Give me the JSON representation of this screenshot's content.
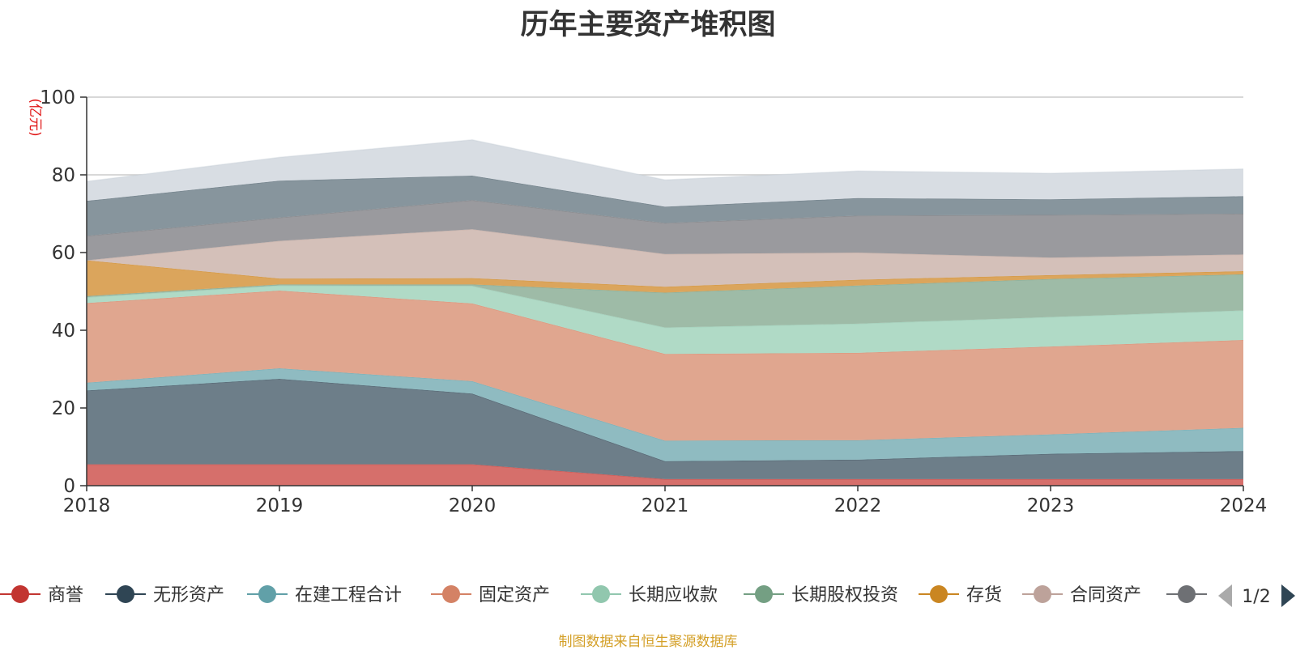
{
  "footer": "制图数据来自恒生聚源数据库",
  "legend_pager": {
    "label": "1/2"
  },
  "chart_data": {
    "type": "area",
    "stacked": true,
    "title": "历年主要资产堆积图",
    "ylabel": "(亿元)",
    "xlabel": "",
    "ylim": [
      0,
      100
    ],
    "yticks": [
      0,
      20,
      40,
      60,
      80,
      100
    ],
    "grid": true,
    "legend_position": "bottom",
    "categories": [
      "2018",
      "2019",
      "2020",
      "2021",
      "2022",
      "2023",
      "2024"
    ],
    "series": [
      {
        "name": "商誉",
        "color": "#c23531",
        "fill": "#d66f6b",
        "values": [
          5.5,
          5.5,
          5.5,
          1.7,
          1.7,
          1.7,
          1.7
        ]
      },
      {
        "name": "无形资产",
        "color": "#2f4554",
        "fill": "#6d7e89",
        "values": [
          19.0,
          22.0,
          18.2,
          4.6,
          5.0,
          6.5,
          7.2
        ]
      },
      {
        "name": "在建工程合计",
        "color": "#61a0a8",
        "fill": "#8fbbc1",
        "values": [
          2.0,
          2.7,
          3.2,
          5.3,
          5.0,
          5.0,
          6.0
        ]
      },
      {
        "name": "固定资产",
        "color": "#d48265",
        "fill": "#e0a68f",
        "values": [
          20.5,
          20.0,
          20.0,
          22.3,
          22.5,
          22.6,
          22.6
        ]
      },
      {
        "name": "长期应收款",
        "color": "#91c7ae",
        "fill": "#b0dac6",
        "values": [
          1.5,
          1.3,
          4.5,
          6.8,
          7.5,
          7.6,
          7.6
        ]
      },
      {
        "name": "长期股权投资",
        "color": "#749f83",
        "fill": "#9ebba7",
        "values": [
          0.3,
          0.3,
          0.4,
          9.0,
          9.8,
          9.8,
          9.3
        ]
      },
      {
        "name": "存货",
        "color": "#ca8622",
        "fill": "#dba55c",
        "values": [
          9.2,
          1.5,
          1.6,
          1.5,
          1.5,
          1.0,
          0.8
        ]
      },
      {
        "name": "合同资产",
        "color": "#bda29a",
        "fill": "#d4c0b9",
        "values": [
          0.0,
          9.7,
          12.6,
          8.4,
          7.0,
          4.5,
          4.3
        ]
      },
      {
        "name": "",
        "color": "#6e7074",
        "fill": "#9a9a9e",
        "values": [
          6.3,
          6.0,
          7.5,
          8.0,
          9.5,
          11.0,
          10.5
        ]
      },
      {
        "name": "",
        "color": "#546570",
        "fill": "#87959d",
        "values": [
          9.0,
          9.5,
          6.3,
          4.2,
          4.5,
          4.0,
          4.5
        ]
      },
      {
        "name": "",
        "color": "#c4ccd3",
        "fill": "#d8dde3",
        "values": [
          5.0,
          6.0,
          9.2,
          6.9,
          7.0,
          6.7,
          7.0
        ]
      }
    ]
  }
}
